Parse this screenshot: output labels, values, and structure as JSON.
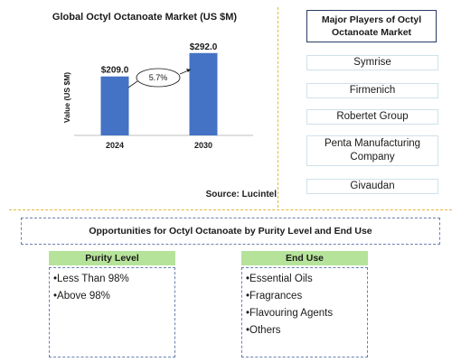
{
  "chart_data": {
    "type": "bar",
    "title": "Global Octyl Octanoate Market (US $M)",
    "categories": [
      "2024",
      "2030"
    ],
    "values": [
      209.0,
      292.0
    ],
    "value_labels": [
      "$209.0",
      "$292.0"
    ],
    "ylabel": "Value (US $M)",
    "xlabel": "",
    "cagr_label": "5.7%",
    "bar_color": "#4472c4",
    "ylim": [
      0,
      320
    ]
  },
  "source": "Source: Lucintel",
  "players": {
    "title": "Major Players of Octyl Octanoate Market",
    "items": [
      "Symrise",
      "Firmenich",
      "Robertet Group",
      "Penta Manufacturing Company",
      "Givaudan"
    ]
  },
  "opportunities": {
    "title": "Opportunities for Octyl Octanoate by Purity Level and End Use",
    "segments": [
      {
        "header": "Purity Level",
        "items": [
          "Less Than 98%",
          "Above 98%"
        ]
      },
      {
        "header": "End Use",
        "items": [
          "Essential Oils",
          "Fragrances",
          "Flavouring Agents",
          "Others"
        ]
      }
    ]
  },
  "colors": {
    "segment_header_bg": "#b6e39a",
    "divider": "#e8b63a",
    "box_border": "#6a7fb0"
  }
}
